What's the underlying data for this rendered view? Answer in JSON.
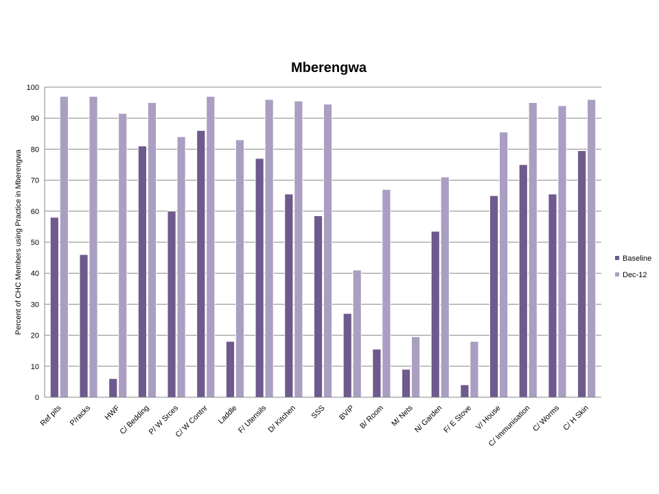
{
  "chart_data": {
    "type": "bar",
    "title": "Mberengwa",
    "ylabel": "Percent of CHC Members using Practice in Mberengwa",
    "xlabel": "",
    "ylim": [
      0,
      100
    ],
    "yticks": [
      0,
      10,
      20,
      30,
      40,
      50,
      60,
      70,
      80,
      90,
      100
    ],
    "grid": "horizontal",
    "legend_position": "right",
    "categories": [
      "Ref pits",
      "P/racks",
      "HWF",
      "C/ Bedding",
      "P/ W Srces",
      "C/ W Contnr",
      "Laddle",
      "F/ Utensils",
      "D/ Kitchen",
      "SSS",
      "BVIP",
      "B/ Room",
      "M/ Nets",
      "N/ Garden",
      "F/ E Stove",
      "V/ House",
      "C/ Immunisation",
      "C/ Worms",
      "C/ H Skin"
    ],
    "series": [
      {
        "name": "Baseline",
        "color": "#6e5a8c",
        "values": [
          58,
          46,
          6,
          81,
          60,
          86,
          18,
          77,
          65.5,
          58.5,
          27,
          15.5,
          9,
          53.5,
          4,
          65,
          75,
          65.5,
          79.5
        ]
      },
      {
        "name": "Dec-12",
        "color": "#aa9fc2",
        "values": [
          97,
          97,
          91.5,
          95,
          84,
          97,
          83,
          96,
          95.5,
          94.5,
          41,
          67,
          19.5,
          71,
          18,
          85.5,
          95,
          94,
          96
        ]
      }
    ]
  }
}
